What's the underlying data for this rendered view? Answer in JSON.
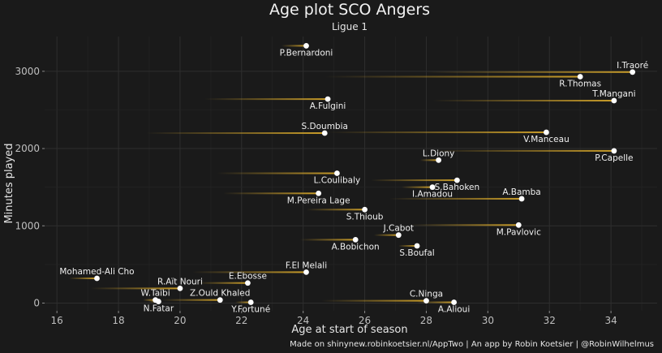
{
  "chart_data": {
    "type": "scatter",
    "title": "Age plot SCO Angers",
    "subtitle": "Ligue 1",
    "xlabel": "Age at start of season",
    "ylabel": "Minutes played",
    "caption": "Made on shinynew.robinkoetsier.nl/AppTwo | An app by Robin Koetsier | @RobinWilhelmus",
    "xlim": [
      15.6,
      35.5
    ],
    "ylim": [
      -100,
      3450
    ],
    "xticks": [
      16,
      18,
      20,
      22,
      24,
      26,
      28,
      30,
      32,
      34
    ],
    "yticks": [
      0,
      1000,
      2000,
      3000
    ],
    "grid": true,
    "colors": {
      "background": "#1a1a1a",
      "grid": "#2e2e2e",
      "point": "#ffffff",
      "trail": "#d4a52a",
      "text": "#f0f0f0"
    },
    "points": [
      {
        "name": "P.Bernardoni",
        "age": 24.1,
        "minutes": 3330,
        "trail_start": 23.3,
        "label_pos": "below"
      },
      {
        "name": "I.Traoré",
        "age": 34.7,
        "minutes": 2990,
        "trail_start": 28.0,
        "label_pos": "above"
      },
      {
        "name": "R.Thomas",
        "age": 33.0,
        "minutes": 2930,
        "trail_start": 24.7,
        "label_pos": "below"
      },
      {
        "name": "A.Fulgini",
        "age": 24.8,
        "minutes": 2640,
        "trail_start": 20.8,
        "label_pos": "below"
      },
      {
        "name": "T.Mangani",
        "age": 34.1,
        "minutes": 2620,
        "trail_start": 28.2,
        "label_pos": "above"
      },
      {
        "name": "S.Doumbia",
        "age": 24.7,
        "minutes": 2200,
        "trail_start": 18.9,
        "label_pos": "above"
      },
      {
        "name": "V.Manceau",
        "age": 31.9,
        "minutes": 2210,
        "trail_start": 24.8,
        "label_pos": "below"
      },
      {
        "name": "P.Capelle",
        "age": 34.1,
        "minutes": 1970,
        "trail_start": 28.2,
        "label_pos": "below"
      },
      {
        "name": "L.Diony",
        "age": 28.4,
        "minutes": 1850,
        "trail_start": 27.8,
        "label_pos": "above"
      },
      {
        "name": "L.Coulibaly",
        "age": 25.1,
        "minutes": 1680,
        "trail_start": 21.2,
        "label_pos": "below"
      },
      {
        "name": "S.Bahoken",
        "age": 29.0,
        "minutes": 1590,
        "trail_start": 26.2,
        "label_pos": "below"
      },
      {
        "name": "I.Amadou",
        "age": 28.2,
        "minutes": 1500,
        "trail_start": 27.2,
        "label_pos": "below"
      },
      {
        "name": "M.Pereira Lage",
        "age": 24.5,
        "minutes": 1420,
        "trail_start": 21.4,
        "label_pos": "below"
      },
      {
        "name": "A.Bamba",
        "age": 31.1,
        "minutes": 1350,
        "trail_start": 26.8,
        "label_pos": "above"
      },
      {
        "name": "S.Thioub",
        "age": 26.0,
        "minutes": 1210,
        "trail_start": 24.1,
        "label_pos": "below"
      },
      {
        "name": "M.Pavlovic",
        "age": 31.0,
        "minutes": 1010,
        "trail_start": 27.5,
        "label_pos": "below"
      },
      {
        "name": "J.Cabot",
        "age": 27.1,
        "minutes": 880,
        "trail_start": 26.3,
        "label_pos": "above"
      },
      {
        "name": "A.Bobichon",
        "age": 25.7,
        "minutes": 820,
        "trail_start": 23.9,
        "label_pos": "below"
      },
      {
        "name": "S.Boufal",
        "age": 27.7,
        "minutes": 740,
        "trail_start": 27.1,
        "label_pos": "below"
      },
      {
        "name": "F.El Melali",
        "age": 24.1,
        "minutes": 400,
        "trail_start": 20.4,
        "label_pos": "above"
      },
      {
        "name": "Mohamed-Ali Cho",
        "age": 17.3,
        "minutes": 320,
        "trail_start": 16.4,
        "label_pos": "above"
      },
      {
        "name": "E.Ebosse",
        "age": 22.2,
        "minutes": 260,
        "trail_start": 20.6,
        "label_pos": "above"
      },
      {
        "name": "R.Aït Nouri",
        "age": 20.0,
        "minutes": 190,
        "trail_start": 17.1,
        "label_pos": "above"
      },
      {
        "name": "C.Ninga",
        "age": 28.0,
        "minutes": 30,
        "trail_start": 24.6,
        "label_pos": "above"
      },
      {
        "name": "A.Alioui",
        "age": 28.9,
        "minutes": 10,
        "trail_start": 27.7,
        "label_pos": "below"
      },
      {
        "name": "Z.Ould Khaled",
        "age": 21.3,
        "minutes": 40,
        "trail_start": 19.4,
        "label_pos": "above"
      },
      {
        "name": "W.Taïbi",
        "age": 19.2,
        "minutes": 40,
        "trail_start": 18.8,
        "label_pos": "above"
      },
      {
        "name": "N.Fatar",
        "age": 19.3,
        "minutes": 20,
        "trail_start": 19.0,
        "label_pos": "below"
      },
      {
        "name": "Y.Fortuné",
        "age": 22.3,
        "minutes": 10,
        "trail_start": 21.8,
        "label_pos": "below"
      }
    ]
  }
}
